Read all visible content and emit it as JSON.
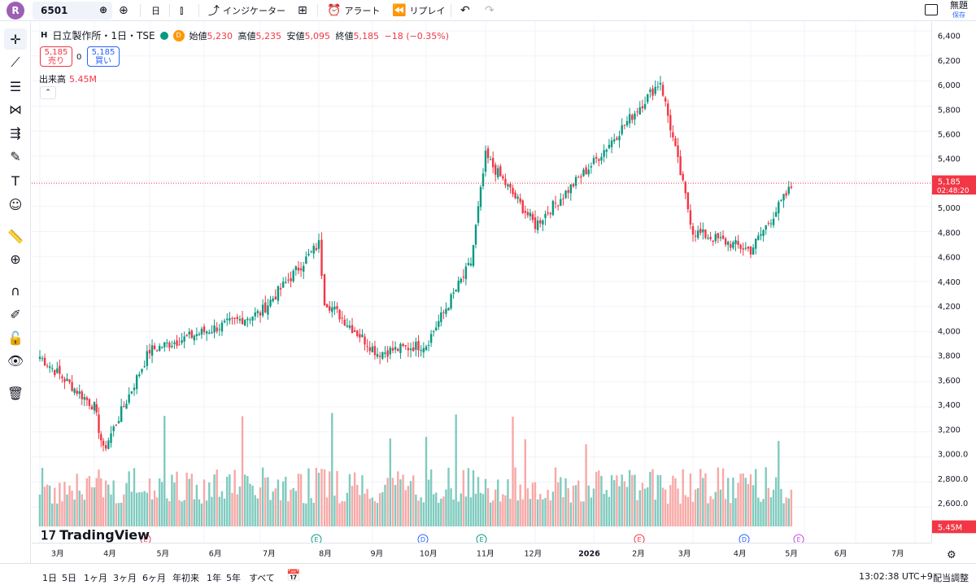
{
  "topbar": {
    "avatar_letter": "R",
    "symbol": "6501",
    "interval": "日",
    "indicators_label": "インジケーター",
    "alert_label": "アラート",
    "replay_label": "リプレイ",
    "save_label": "無題",
    "save_sub": "保存"
  },
  "legend": {
    "title": "日立製作所・1日・TSE",
    "badge": "D",
    "open_k": "始値",
    "open_v": "5,230",
    "high_k": "高値",
    "high_v": "5,235",
    "low_k": "安値",
    "low_v": "5,095",
    "close_k": "終値",
    "close_v": "5,185",
    "change": "−18 (−0.35%)",
    "sell_price": "5,185",
    "sell_label": "売り",
    "spread": "0",
    "buy_price": "5,185",
    "buy_label": "買い",
    "volume_label": "出来高",
    "volume_value": "5.45M",
    "collapse_glyph": "⌃"
  },
  "price_axis": {
    "ticks": [
      "6,400",
      "6,200",
      "6,000",
      "5,800",
      "5,600",
      "5,400",
      "5,200",
      "5,000",
      "4,800",
      "4,600",
      "4,400",
      "4,200",
      "4,000",
      "3,800",
      "3,600",
      "3,400",
      "3,200",
      "3,000.0",
      "2,800.0",
      "2,600.0"
    ],
    "current_price": "5,185",
    "countdown": "02:48:20",
    "volume_tag": "5.45M"
  },
  "time_axis": [
    "3月",
    "4月",
    "5月",
    "6月",
    "7月",
    "8月",
    "9月",
    "10月",
    "11月",
    "12月",
    "2026",
    "2月",
    "3月",
    "4月",
    "5月",
    "6月",
    "7月"
  ],
  "bottom": {
    "ranges": [
      "1日",
      "5日",
      "1ヶ月",
      "3ヶ月",
      "6ヶ月",
      "年初来",
      "1年",
      "5年",
      "すべて"
    ],
    "clock": "13:02:38 UTC+9",
    "adjust": "配当調整"
  },
  "logo_text": "TradingView",
  "colors": {
    "up": "#089981",
    "down": "#f23645",
    "up_vol": "#7fcbbf",
    "down_vol": "#f7a9a7",
    "accent": "#2962ff"
  },
  "chart_data": {
    "type": "candlestick",
    "anchors": [
      {
        "x": "3月",
        "close": 3800
      },
      {
        "x": "4月",
        "close": 3400
      },
      {
        "x": "4月",
        "close": 3050
      },
      {
        "x": "5月",
        "close": 3850
      },
      {
        "x": "6月",
        "close": 4000
      },
      {
        "x": "7月",
        "close": 4150
      },
      {
        "x": "8月",
        "close": 4700
      },
      {
        "x": "8月",
        "close": 4250
      },
      {
        "x": "9月",
        "close": 3830
      },
      {
        "x": "10月",
        "close": 3900
      },
      {
        "x": "10月",
        "close": 4550
      },
      {
        "x": "11月",
        "close": 5400
      },
      {
        "x": "12月",
        "close": 4850
      },
      {
        "x": "2026",
        "close": 5350
      },
      {
        "x": "2月",
        "close": 6000
      },
      {
        "x": "3月",
        "close": 4800
      },
      {
        "x": "4月",
        "close": 4650
      },
      {
        "x": "5月",
        "close": 5185
      }
    ],
    "ylim": [
      2600,
      6400
    ],
    "volume_max": "5.45M"
  }
}
